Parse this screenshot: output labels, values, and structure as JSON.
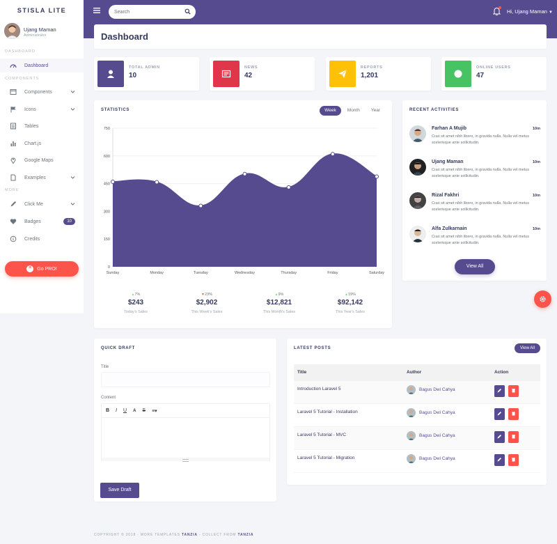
{
  "brand": "STISLA LITE",
  "colors": {
    "primary": "#574b90",
    "danger": "#fc544b",
    "warning": "#ffc107",
    "success": "#47c363"
  },
  "search": {
    "placeholder": "Search"
  },
  "navbar": {
    "user_label": "Hi, Ujang Maman"
  },
  "sidebar": {
    "user": {
      "name": "Ujang Maman",
      "role": "Administrator"
    },
    "headers": [
      "DASHBOARD",
      "COMPONENTS",
      "MORE"
    ],
    "items": [
      {
        "label": "Dashboard",
        "icon": "dashboard-icon"
      },
      {
        "label": "Components",
        "icon": "window-icon"
      },
      {
        "label": "Icons",
        "icon": "flag-icon"
      },
      {
        "label": "Tables",
        "icon": "table-icon"
      },
      {
        "label": "Chart.js",
        "icon": "bar-chart-icon"
      },
      {
        "label": "Google Maps",
        "icon": "map-pin-icon"
      },
      {
        "label": "Examples",
        "icon": "file-icon"
      },
      {
        "label": "Click Me",
        "icon": "pen-icon"
      },
      {
        "label": "Badges",
        "icon": "heart-icon",
        "badge": "10"
      },
      {
        "label": "Credits",
        "icon": "info-icon"
      }
    ],
    "gopro": "Go PRO!"
  },
  "page_title": "Dashboard",
  "stats": [
    {
      "label": "TOTAL ADMIN",
      "value": "10",
      "color": "#574b90",
      "icon": "user-icon"
    },
    {
      "label": "NEWS",
      "value": "42",
      "color": "#fc544b",
      "icon": "newspaper-icon"
    },
    {
      "label": "REPORTS",
      "value": "1,201",
      "color": "#ffc107",
      "icon": "paper-plane-icon"
    },
    {
      "label": "ONLINE USERS",
      "value": "47",
      "color": "#47c363",
      "icon": "circle-icon"
    }
  ],
  "statistics": {
    "title": "STATISTICS",
    "tabs": [
      "Week",
      "Month",
      "Year"
    ],
    "summary": [
      {
        "change": "7%",
        "dir": "up",
        "amount": "$243",
        "desc": "Today's Sales"
      },
      {
        "change": "23%",
        "dir": "down",
        "amount": "$2,902",
        "desc": "This Week's Sales"
      },
      {
        "change": "9%",
        "dir": "up",
        "amount": "$12,821",
        "desc": "This Month's Sales"
      },
      {
        "change": "19%",
        "dir": "up",
        "amount": "$92,142",
        "desc": "This Year's Sales"
      }
    ]
  },
  "chart_data": {
    "type": "area",
    "x": [
      "Sunday",
      "Monday",
      "Tuesday",
      "Wednesday",
      "Thursday",
      "Friday",
      "Saturday"
    ],
    "series": [
      {
        "values": [
          460,
          458,
          330,
          502,
          430,
          610,
          488
        ]
      }
    ],
    "ylim": [
      0,
      750
    ],
    "yticks": [
      0,
      150,
      300,
      450,
      600,
      750
    ],
    "grid": true,
    "color": "#574b90"
  },
  "recent": {
    "title": "RECENT ACTIVITIES",
    "items": [
      {
        "name": "Farhan A Mujib",
        "time": "10m",
        "text": "Cras sit amet nibh libero, in gravida nulla. Nulla vel metus scelerisque ante sollicitudin."
      },
      {
        "name": "Ujang Maman",
        "time": "10m",
        "text": "Cras sit amet nibh libero, in gravida nulla. Nulla vel metus scelerisque ante sollicitudin."
      },
      {
        "name": "Rizal Fakhri",
        "time": "10m",
        "text": "Cras sit amet nibh libero, in gravida nulla. Nulla vel metus scelerisque ante sollicitudin."
      },
      {
        "name": "Alfa Zulkarnain",
        "time": "10m",
        "text": "Cras sit amet nibh libero, in gravida nulla. Nulla vel metus scelerisque ante sollicitudin."
      }
    ],
    "view_all": "View All"
  },
  "draft": {
    "title": "QUICK DRAFT",
    "title_label": "Title",
    "title_value": "",
    "content_label": "Content",
    "toolbar": [
      "B",
      "I",
      "U",
      "A",
      "S",
      "≡▾"
    ],
    "save": "Save Draft"
  },
  "posts": {
    "title": "LATEST POSTS",
    "view_all": "View All",
    "columns": [
      "Title",
      "Author",
      "Action"
    ],
    "rows": [
      {
        "title": "Introduction Laravel 5",
        "author": "Bagus Dwi Cahya"
      },
      {
        "title": "Laravel 5 Tutorial - Installation",
        "author": "Bagus Dwi Cahya"
      },
      {
        "title": "Laravel 5 Tutorial - MVC",
        "author": "Bagus Dwi Cahya"
      },
      {
        "title": "Laravel 5 Tutorial - Migration",
        "author": "Bagus Dwi Cahya"
      }
    ]
  },
  "footer": {
    "copyright": "COPYRIGHT © 2018",
    "sep": "·",
    "more": "MORE TEMPLATES",
    "tanzia1": "TANZIA",
    "collect": "- COLLECT FROM",
    "tanzia2": "TANZIA"
  }
}
